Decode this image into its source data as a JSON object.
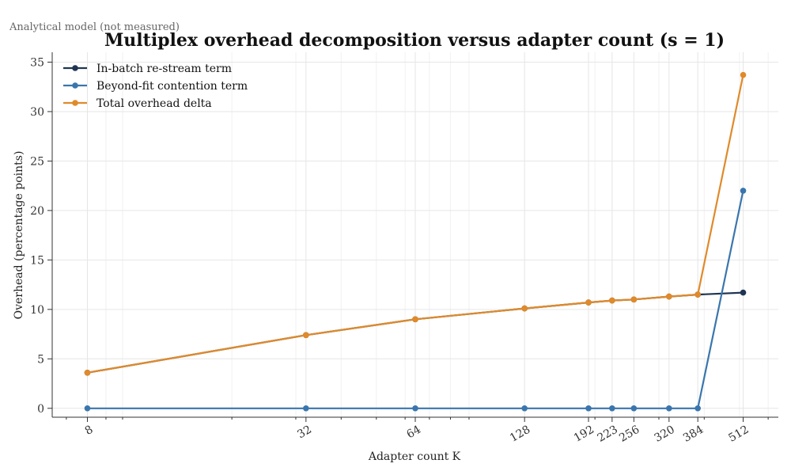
{
  "annotation": "Analytical model (not measured)",
  "chart_data": {
    "type": "line",
    "title": "Multiplex overhead decomposition versus adapter count (s = 1)",
    "xlabel": "Adapter count K",
    "ylabel": "Overhead (percentage points)",
    "x_scale": "log2",
    "xlim": [
      6.4,
      640
    ],
    "ylim": [
      -0.9,
      36
    ],
    "x_ticks": [
      8,
      32,
      64,
      128,
      192,
      223,
      256,
      320,
      384,
      512
    ],
    "x_tick_labels": [
      "8",
      "32",
      "64",
      "128",
      "192",
      "223",
      "256",
      "320",
      "384",
      "512"
    ],
    "y_ticks": [
      0,
      5,
      10,
      15,
      20,
      25,
      30,
      35
    ],
    "y_tick_labels": [
      "0",
      "5",
      "10",
      "15",
      "20",
      "25",
      "30",
      "35"
    ],
    "grid": true,
    "legend_position": "top-left",
    "x": [
      8,
      32,
      64,
      128,
      192,
      223,
      256,
      320,
      384,
      512
    ],
    "series": [
      {
        "name": "In-batch re-stream term",
        "color": "#1f3552",
        "values": [
          3.6,
          7.4,
          9.0,
          10.1,
          10.7,
          10.9,
          11.0,
          11.3,
          11.5,
          11.7
        ]
      },
      {
        "name": "Beyond-fit contention term",
        "color": "#3a76ad",
        "values": [
          0.0,
          0.0,
          0.0,
          0.0,
          0.0,
          0.0,
          0.0,
          0.0,
          0.0,
          22.0
        ]
      },
      {
        "name": "Total overhead delta",
        "color": "#e08a2a",
        "values": [
          3.6,
          7.4,
          9.0,
          10.1,
          10.7,
          10.9,
          11.0,
          11.3,
          11.5,
          33.7
        ]
      }
    ]
  }
}
